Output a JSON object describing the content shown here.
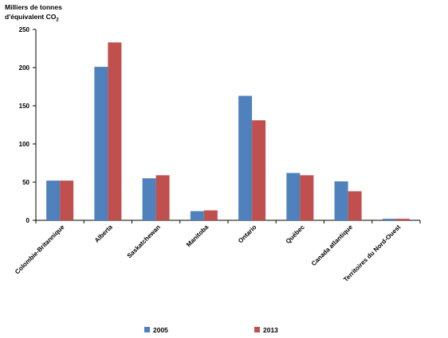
{
  "chart_data": {
    "type": "bar",
    "ylabel_line1": "Milliers de tonnes",
    "ylabel_line2": "d'équivalent CO",
    "ylabel_subscript": "2",
    "ylim": [
      0,
      250
    ],
    "yticks": [
      0,
      50,
      100,
      150,
      200,
      250
    ],
    "categories": [
      "Colombie-Britannique",
      "Alberta",
      "Saskatchewan",
      "Manitoba",
      "Ontario",
      "Québec",
      "Canada atlantique",
      "Territoires du Nord-Ouest"
    ],
    "series": [
      {
        "name": "2005",
        "color": "#4F81BD",
        "values": [
          52,
          201,
          55,
          12,
          163,
          62,
          51,
          2
        ]
      },
      {
        "name": "2013",
        "color": "#C0504D",
        "values": [
          52,
          233,
          59,
          13,
          131,
          59,
          38,
          2
        ]
      }
    ],
    "legend_position": "bottom",
    "grid": false
  }
}
